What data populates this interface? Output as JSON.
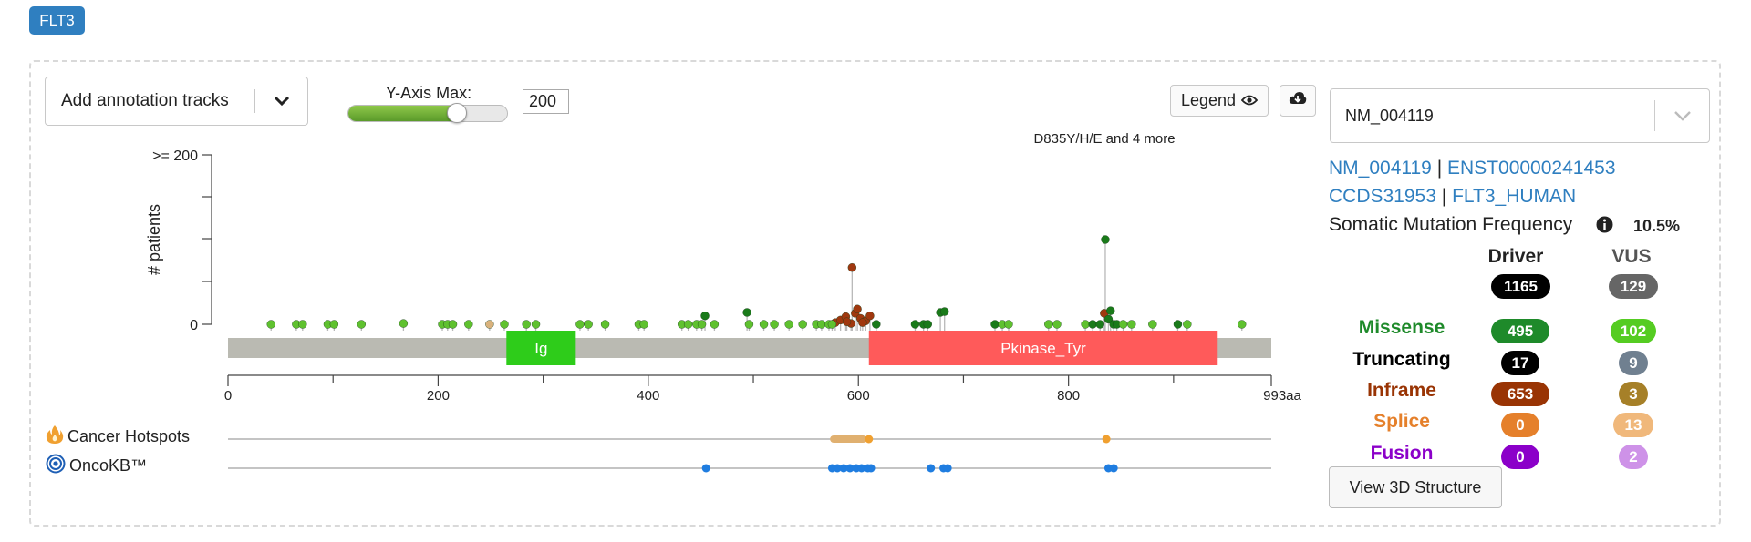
{
  "gene_badge": "FLT3",
  "annotation": {
    "label": "Add annotation tracks",
    "icon": "chevron-down-icon"
  },
  "yaxis_control": {
    "label": "Y-Axis Max:",
    "value": "200",
    "slider_fraction": 0.68
  },
  "legend_button": {
    "label": "Legend",
    "icon": "eye-icon"
  },
  "download_button": {
    "icon": "cloud-download-icon"
  },
  "plot": {
    "y_top_label": ">= 200",
    "y_zero_label": "0",
    "y_axis_title": "# patients",
    "top_annotation": "D835Y/H/E and 4 more",
    "x_ticks": [
      "0",
      "200",
      "400",
      "600",
      "800",
      "993aa"
    ],
    "domains": [
      {
        "name": "Ig",
        "start": 265,
        "end": 331,
        "color": "#2ecc1a"
      },
      {
        "name": "Pkinase_Tyr",
        "start": 610,
        "end": 942,
        "color": "#ff5a5a"
      }
    ]
  },
  "tracks": {
    "hotspots": {
      "label": "Cancer Hotspots",
      "icon": "flame-icon"
    },
    "oncokb": {
      "label": "OncoKB™",
      "icon": "oncokb-target-icon"
    }
  },
  "transcript": {
    "selected": "NM_004119",
    "refseq": "NM_004119",
    "ensembl": "ENST00000241453",
    "ccds": "CCDS31953",
    "uniprot": "FLT3_HUMAN",
    "sep": "|"
  },
  "somatic": {
    "label": "Somatic Mutation Frequency",
    "value": "10.5%",
    "icon": "info-circle-icon"
  },
  "mutation_table": {
    "headers": {
      "driver": "Driver",
      "vus": "VUS"
    },
    "totals": {
      "driver": "1165",
      "vus": "129"
    },
    "rows": [
      {
        "label": "Missense",
        "color": "#1e8a2a",
        "driver": "495",
        "vus": "102",
        "driver_bg": "#1e8a2a",
        "vus_bg": "#55cc22"
      },
      {
        "label": "Truncating",
        "color": "#000000",
        "driver": "17",
        "vus": "9",
        "driver_bg": "#000000",
        "vus_bg": "#708090"
      },
      {
        "label": "Inframe",
        "color": "#993404",
        "driver": "653",
        "vus": "3",
        "driver_bg": "#993404",
        "vus_bg": "#a68028"
      },
      {
        "label": "Splice",
        "color": "#e5802b",
        "driver": "0",
        "vus": "13",
        "driver_bg": "#e5802b",
        "vus_bg": "#f0b87b"
      },
      {
        "label": "Fusion",
        "color": "#8b00c9",
        "driver": "0",
        "vus": "2",
        "driver_bg": "#8b00c9",
        "vus_bg": "#ce92e8"
      }
    ]
  },
  "view3d": {
    "label": "View 3D Structure"
  }
}
